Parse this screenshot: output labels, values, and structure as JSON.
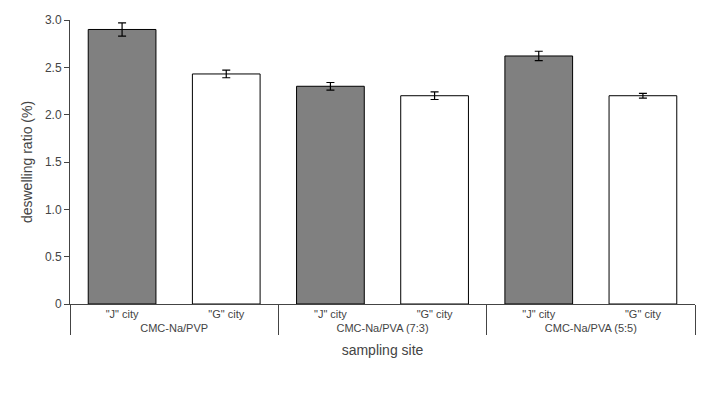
{
  "chart_data": {
    "type": "bar",
    "categories": [
      "CMC-Na/PVP",
      "CMC-Na/PVA (7:3)",
      "CMC-Na/PVA (5:5)"
    ],
    "series": [
      {
        "name": "\"J\" city",
        "color": "#808080",
        "values": [
          2.9,
          2.3,
          2.62
        ],
        "errors": [
          0.07,
          0.04,
          0.05
        ]
      },
      {
        "name": "\"G\" city",
        "color": "#ffffff",
        "values": [
          2.43,
          2.2,
          2.2
        ],
        "errors": [
          0.04,
          0.04,
          0.025
        ]
      }
    ],
    "xlabel": "sampling site",
    "ylabel": "deswelling ratio (%)",
    "ylim": [
      0,
      3.0
    ],
    "yticks": [
      0,
      0.5,
      {
        "value": 1.0,
        "label": "1.0"
      },
      1.5,
      {
        "value": 2.0,
        "label": "2.0"
      },
      2.5,
      {
        "value": 3.0,
        "label": "3.0"
      }
    ],
    "grid": false
  }
}
